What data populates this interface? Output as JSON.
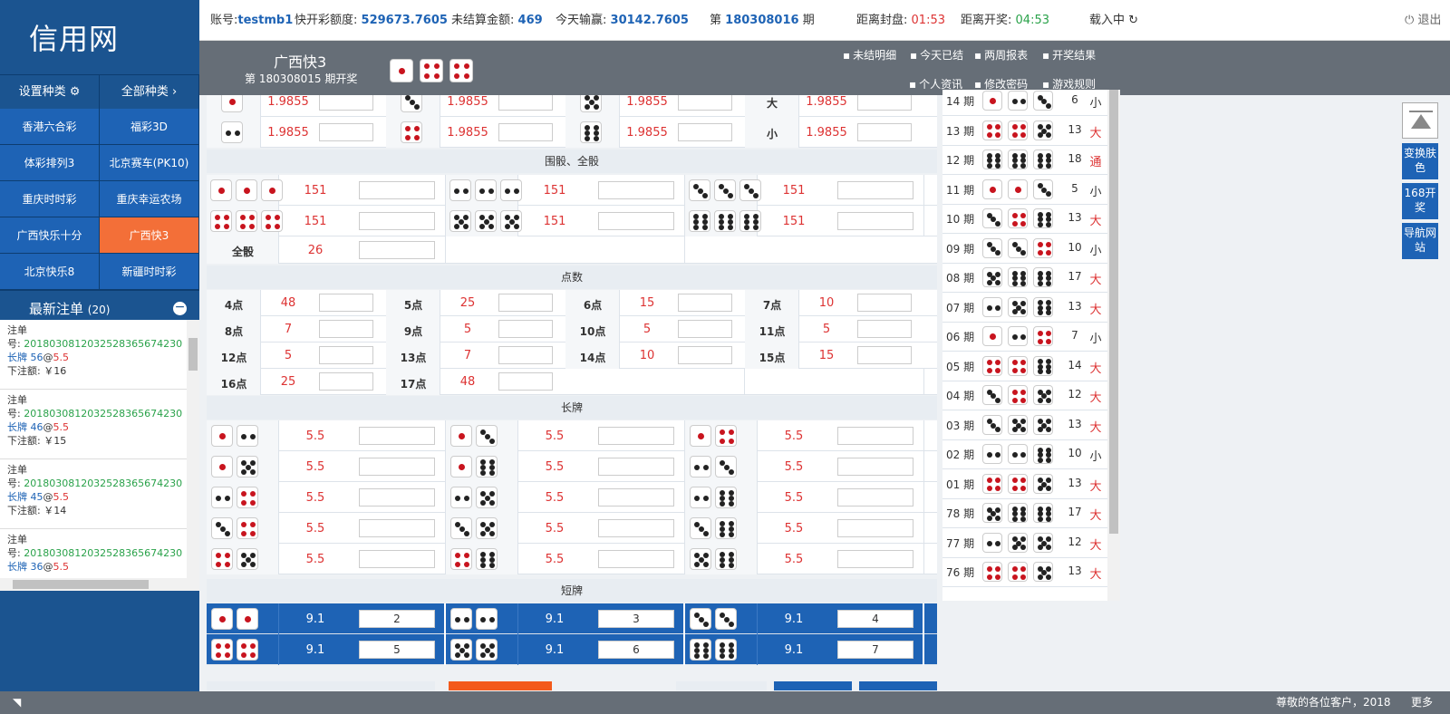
{
  "logo": "信用网",
  "categories": {
    "settings": "设置种类",
    "all": "全部种类 ›",
    "items": [
      "香港六合彩",
      "福彩3D",
      "体彩排列3",
      "北京赛车(PK10)",
      "重庆时时彩",
      "重庆幸运农场",
      "广西快乐十分",
      "广西快3",
      "北京快乐8",
      "新疆时时彩"
    ]
  },
  "recent": {
    "title": "最新注单",
    "count": "(20)",
    "orders": [
      {
        "label": "注单",
        "no_prefix": "号: ",
        "no": "2018030812032528365674230",
        "type": "长牌",
        "num": "56",
        "at": "@",
        "odds": "5.5",
        "amount": "下注额: ￥16"
      },
      {
        "label": "注单",
        "no_prefix": "号: ",
        "no": "2018030812032528365674230",
        "type": "长牌",
        "num": "46",
        "at": "@",
        "odds": "5.5",
        "amount": "下注额: ￥15"
      },
      {
        "label": "注单",
        "no_prefix": "号: ",
        "no": "2018030812032528365674230",
        "type": "长牌",
        "num": "45",
        "at": "@",
        "odds": "5.5",
        "amount": "下注额: ￥14"
      },
      {
        "label": "注单",
        "no_prefix": "号: ",
        "no": "2018030812032528365674230",
        "type": "长牌",
        "num": "36",
        "at": "@",
        "odds": "5.5",
        "amount": ""
      }
    ]
  },
  "top": {
    "acct_label": "账号:",
    "acct": "testmb1",
    "credit_label": "快开彩额度:",
    "credit": "529673.7605",
    "unsettled_label": "未结算金额:",
    "unsettled": "469",
    "today_label": "今天输赢:",
    "today": "30142.7605",
    "period_pre": "第",
    "period": "180308016",
    "period_suf": "期",
    "close_label": "距离封盘:",
    "close": "01:53",
    "open_label": "距离开奖:",
    "open": "04:53",
    "loading": "载入中 ↻",
    "logout": "⏻ 退出"
  },
  "game": {
    "name": "广西快3",
    "period": "第 180308015 期开奖",
    "result": [
      1,
      4,
      4
    ],
    "links": [
      "未结明细",
      "今天已结",
      "两周报表",
      "开奖结果",
      "个人资讯",
      "修改密码",
      "游戏规则"
    ]
  },
  "bigsmall": [
    {
      "dice": [
        1
      ],
      "odds": "1.9855"
    },
    {
      "dice": [
        3
      ],
      "odds": "1.9855"
    },
    {
      "dice": [
        5
      ],
      "odds": "1.9855"
    },
    {
      "label": "大",
      "odds": "1.9855"
    },
    {
      "dice": [
        2
      ],
      "odds": "1.9855"
    },
    {
      "dice": [
        4
      ],
      "odds": "1.9855"
    },
    {
      "dice": [
        6
      ],
      "odds": "1.9855"
    },
    {
      "label": "小",
      "odds": "1.9855"
    }
  ],
  "triple": {
    "title": "围骰、全骰",
    "items": [
      {
        "dice": [
          1,
          1,
          1
        ],
        "odds": "151"
      },
      {
        "dice": [
          2,
          2,
          2
        ],
        "odds": "151"
      },
      {
        "dice": [
          3,
          3,
          3
        ],
        "odds": "151"
      },
      {
        "dice": [
          4,
          4,
          4
        ],
        "odds": "151"
      },
      {
        "dice": [
          5,
          5,
          5
        ],
        "odds": "151"
      },
      {
        "dice": [
          6,
          6,
          6
        ],
        "odds": "151"
      }
    ],
    "all_label": "全骰",
    "all_odds": "26"
  },
  "points": {
    "title": "点数",
    "items": [
      [
        "4点",
        "48"
      ],
      [
        "5点",
        "25"
      ],
      [
        "6点",
        "15"
      ],
      [
        "7点",
        "10"
      ],
      [
        "8点",
        "7"
      ],
      [
        "9点",
        "5"
      ],
      [
        "10点",
        "5"
      ],
      [
        "11点",
        "5"
      ],
      [
        "12点",
        "5"
      ],
      [
        "13点",
        "7"
      ],
      [
        "14点",
        "10"
      ],
      [
        "15点",
        "15"
      ],
      [
        "16点",
        "25"
      ],
      [
        "17点",
        "48"
      ]
    ]
  },
  "long": {
    "title": "长牌",
    "items": [
      [
        [
          1,
          2
        ],
        "5.5"
      ],
      [
        [
          1,
          3
        ],
        "5.5"
      ],
      [
        [
          1,
          4
        ],
        "5.5"
      ],
      [
        [
          1,
          5
        ],
        "5.5"
      ],
      [
        [
          1,
          6
        ],
        "5.5"
      ],
      [
        [
          2,
          3
        ],
        "5.5"
      ],
      [
        [
          2,
          4
        ],
        "5.5"
      ],
      [
        [
          2,
          5
        ],
        "5.5"
      ],
      [
        [
          2,
          6
        ],
        "5.5"
      ],
      [
        [
          3,
          4
        ],
        "5.5"
      ],
      [
        [
          3,
          5
        ],
        "5.5"
      ],
      [
        [
          3,
          6
        ],
        "5.5"
      ],
      [
        [
          4,
          5
        ],
        "5.5"
      ],
      [
        [
          4,
          6
        ],
        "5.5"
      ],
      [
        [
          5,
          6
        ],
        "5.5"
      ]
    ]
  },
  "short": {
    "title": "短牌",
    "items": [
      [
        [
          1,
          1
        ],
        "9.1",
        "2"
      ],
      [
        [
          2,
          2
        ],
        "9.1",
        "3"
      ],
      [
        [
          3,
          3
        ],
        "9.1",
        "4"
      ],
      [
        [
          4,
          4
        ],
        "9.1",
        "5"
      ],
      [
        [
          5,
          5
        ],
        "9.1",
        "6"
      ],
      [
        [
          6,
          6
        ],
        "9.1",
        "7"
      ]
    ]
  },
  "results": [
    {
      "p": "14 期",
      "d": [
        1,
        2,
        3
      ],
      "s": "6",
      "bs": "小"
    },
    {
      "p": "13 期",
      "d": [
        4,
        4,
        5
      ],
      "s": "13",
      "bs": "大"
    },
    {
      "p": "12 期",
      "d": [
        6,
        6,
        6
      ],
      "s": "18",
      "bs": "通"
    },
    {
      "p": "11 期",
      "d": [
        1,
        1,
        3
      ],
      "s": "5",
      "bs": "小"
    },
    {
      "p": "10 期",
      "d": [
        3,
        4,
        6
      ],
      "s": "13",
      "bs": "大"
    },
    {
      "p": "09 期",
      "d": [
        3,
        3,
        4
      ],
      "s": "10",
      "bs": "小"
    },
    {
      "p": "08 期",
      "d": [
        5,
        6,
        6
      ],
      "s": "17",
      "bs": "大"
    },
    {
      "p": "07 期",
      "d": [
        2,
        5,
        6
      ],
      "s": "13",
      "bs": "大"
    },
    {
      "p": "06 期",
      "d": [
        1,
        2,
        4
      ],
      "s": "7",
      "bs": "小"
    },
    {
      "p": "05 期",
      "d": [
        4,
        4,
        6
      ],
      "s": "14",
      "bs": "大"
    },
    {
      "p": "04 期",
      "d": [
        3,
        4,
        5
      ],
      "s": "12",
      "bs": "大"
    },
    {
      "p": "03 期",
      "d": [
        3,
        5,
        5
      ],
      "s": "13",
      "bs": "大"
    },
    {
      "p": "02 期",
      "d": [
        2,
        2,
        6
      ],
      "s": "10",
      "bs": "小"
    },
    {
      "p": "01 期",
      "d": [
        4,
        4,
        5
      ],
      "s": "13",
      "bs": "大"
    },
    {
      "p": "78 期",
      "d": [
        5,
        6,
        6
      ],
      "s": "17",
      "bs": "大"
    },
    {
      "p": "77 期",
      "d": [
        2,
        5,
        5
      ],
      "s": "12",
      "bs": "大"
    },
    {
      "p": "76 期",
      "d": [
        4,
        4,
        5
      ],
      "s": "13",
      "bs": "大"
    }
  ],
  "side": {
    "skin": "变换肤色",
    "kai168": "168开奖",
    "nav": "导航网站"
  },
  "footer": {
    "notice": "尊敬的各位客户，2018",
    "more": "更多"
  }
}
